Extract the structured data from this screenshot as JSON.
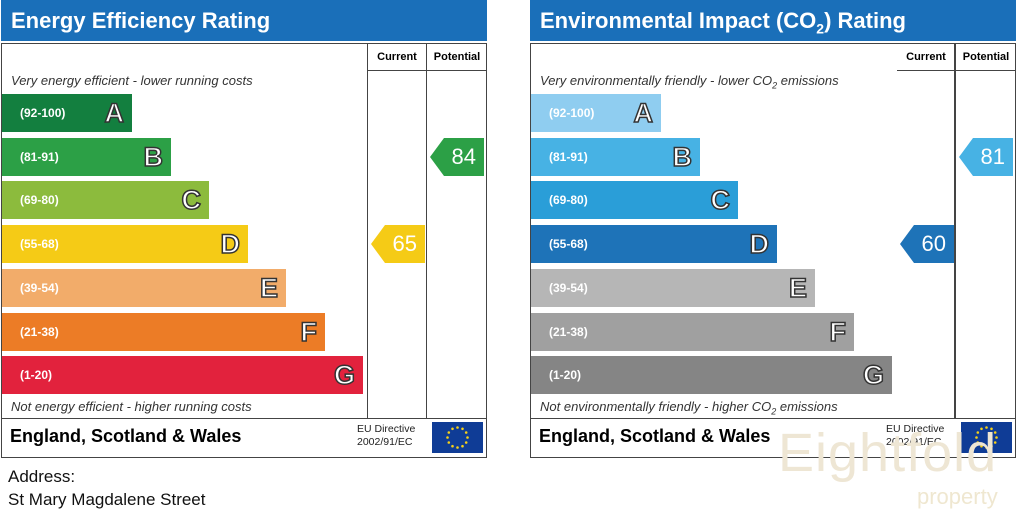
{
  "energy": {
    "title": "Energy Efficiency Rating",
    "col_current": "Current",
    "col_potential": "Potential",
    "top_note": "Very energy efficient - lower running costs",
    "bottom_note": "Not energy efficient - higher running costs",
    "bands": [
      {
        "range": "(92-100)",
        "letter": "A",
        "color": "#137f3f"
      },
      {
        "range": "(81-91)",
        "letter": "B",
        "color": "#2ca046"
      },
      {
        "range": "(69-80)",
        "letter": "C",
        "color": "#8cbb3d"
      },
      {
        "range": "(55-68)",
        "letter": "D",
        "color": "#f5cb16"
      },
      {
        "range": "(39-54)",
        "letter": "E",
        "color": "#f2ac6a"
      },
      {
        "range": "(21-38)",
        "letter": "F",
        "color": "#ec7c26"
      },
      {
        "range": "(1-20)",
        "letter": "G",
        "color": "#e2223d"
      }
    ],
    "current": {
      "value": "65",
      "band": "D",
      "color": "#f5cb16"
    },
    "potential": {
      "value": "84",
      "band": "B",
      "color": "#2ca046"
    },
    "region": "England, Scotland & Wales",
    "directive": [
      "EU Directive",
      "2002/91/EC"
    ]
  },
  "environment": {
    "title_main": "Environmental Impact (CO",
    "title_sub": "2",
    "title_end": ") Rating",
    "col_current": "Current",
    "col_potential": "Potential",
    "top_note_main": "Very environmentally friendly - lower CO",
    "top_note_sub": "2",
    "top_note_end": " emissions",
    "bottom_note_main": "Not environmentally friendly - higher CO",
    "bottom_note_sub": "2",
    "bottom_note_end": " emissions",
    "bands": [
      {
        "range": "(92-100)",
        "letter": "A",
        "color": "#8fcdf0"
      },
      {
        "range": "(81-91)",
        "letter": "B",
        "color": "#47b2e4"
      },
      {
        "range": "(69-80)",
        "letter": "C",
        "color": "#2a9ed8"
      },
      {
        "range": "(55-68)",
        "letter": "D",
        "color": "#1e73b8"
      },
      {
        "range": "(39-54)",
        "letter": "E",
        "color": "#b6b6b6"
      },
      {
        "range": "(21-38)",
        "letter": "F",
        "color": "#a0a0a0"
      },
      {
        "range": "(1-20)",
        "letter": "G",
        "color": "#858585"
      }
    ],
    "current": {
      "value": "60",
      "band": "D",
      "color": "#1e73b8"
    },
    "potential": {
      "value": "81",
      "band": "B",
      "color": "#47b2e4"
    },
    "region": "England, Scotland & Wales",
    "directive": [
      "EU Directive",
      "2002/91/EC"
    ]
  },
  "address": {
    "label": "Address:",
    "street": "St Mary Magdalene Street"
  },
  "watermark": {
    "brand": "Eightfold",
    "sub": "property"
  }
}
